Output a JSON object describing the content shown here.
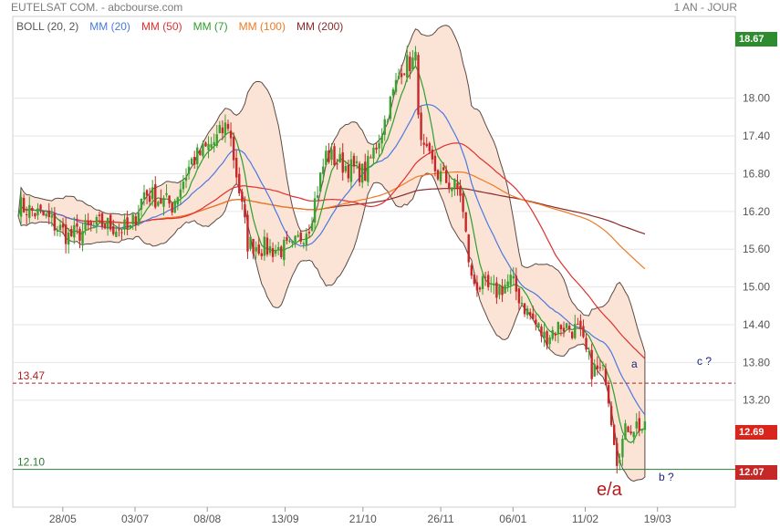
{
  "header": {
    "title": "EUTELSAT COM. - abcbourse.com",
    "period": "1 AN - JOUR"
  },
  "legend": [
    {
      "label": "BOLL (20, 2)",
      "color": "#555555"
    },
    {
      "label": "MM (20)",
      "color": "#4a78e0"
    },
    {
      "label": "MM (50)",
      "color": "#e03030"
    },
    {
      "label": "MM (7)",
      "color": "#2e9e2e"
    },
    {
      "label": "MM (100)",
      "color": "#f07a22"
    },
    {
      "label": "MM (200)",
      "color": "#8b2a2a"
    }
  ],
  "colors": {
    "up": "#3aa02f",
    "down": "#c62828",
    "band_fill": "#fbe4d5",
    "band_line": "#5a4a44",
    "grid": "#e6e6e6",
    "axis_text": "#555555",
    "last_price_bg": "#d9261c",
    "top_price_bg": "#2e8b2e",
    "support_bg": "#c62828",
    "resistance_line": "#b22222",
    "support_line": "#2e7d32"
  },
  "chart_data": {
    "type": "candlestick",
    "ylim": [
      11.5,
      19.3
    ],
    "yticks": [
      "18.00",
      "17.40",
      "16.80",
      "16.20",
      "15.60",
      "15.00",
      "14.40",
      "13.80",
      "13.20"
    ],
    "xticks": [
      "28/05",
      "03/07",
      "08/08",
      "13/09",
      "21/10",
      "26/11",
      "06/01",
      "11/02",
      "19/03"
    ],
    "price_labels": {
      "top": "18.67",
      "last": "12.69",
      "support": "12.07"
    },
    "levels": [
      {
        "label": "13.47",
        "value": 13.47,
        "style": "dashed"
      },
      {
        "label": "12.10",
        "value": 12.1,
        "style": "solid"
      }
    ],
    "annotations": [
      {
        "text": "a",
        "date_index": 222
      },
      {
        "text": "c ?",
        "date_index": 249
      },
      {
        "text": "b ?",
        "date_index": 238
      },
      {
        "text": "e/a",
        "date_index": 215
      }
    ],
    "close_path_anchors": [
      [
        0,
        16.3
      ],
      [
        10,
        16.1
      ],
      [
        18,
        15.8
      ],
      [
        30,
        16.0
      ],
      [
        40,
        15.9
      ],
      [
        45,
        16.5
      ],
      [
        55,
        16.3
      ],
      [
        62,
        17.0
      ],
      [
        70,
        17.3
      ],
      [
        75,
        17.6
      ],
      [
        78,
        16.8
      ],
      [
        82,
        15.7
      ],
      [
        90,
        15.6
      ],
      [
        98,
        15.6
      ],
      [
        104,
        16.0
      ],
      [
        110,
        17.1
      ],
      [
        118,
        16.9
      ],
      [
        124,
        16.8
      ],
      [
        130,
        17.5
      ],
      [
        137,
        18.5
      ],
      [
        142,
        18.6
      ],
      [
        144,
        17.2
      ],
      [
        150,
        16.8
      ],
      [
        158,
        16.5
      ],
      [
        162,
        15.1
      ],
      [
        170,
        14.9
      ],
      [
        176,
        15.1
      ],
      [
        182,
        14.6
      ],
      [
        188,
        14.2
      ],
      [
        194,
        14.4
      ],
      [
        200,
        14.3
      ],
      [
        205,
        13.7
      ],
      [
        210,
        13.6
      ],
      [
        214,
        12.3
      ],
      [
        218,
        12.8
      ],
      [
        222,
        12.8
      ],
      [
        224,
        12.69
      ]
    ],
    "close_series_note": ""
  }
}
